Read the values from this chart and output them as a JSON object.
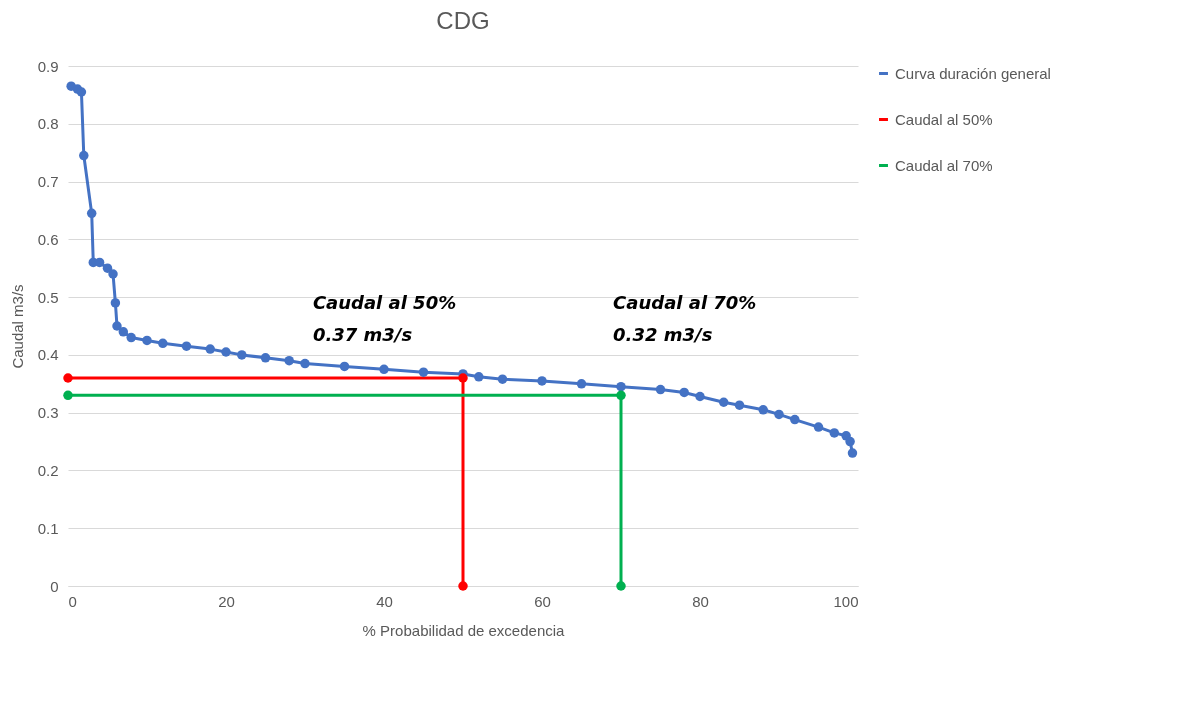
{
  "chart_data": {
    "type": "line",
    "title": "CDG",
    "xlabel": "% Probabilidad de excedencia",
    "ylabel": "Caudal m3/s",
    "xlim": [
      0,
      100
    ],
    "xticks": [
      0,
      20,
      40,
      60,
      80,
      100
    ],
    "ylim": [
      0,
      0.9
    ],
    "yticks": [
      0,
      0.1,
      0.2,
      0.3,
      0.4,
      0.5,
      0.6,
      0.7,
      0.8,
      0.9
    ],
    "grid": "y",
    "legend": "right",
    "marker": "circle",
    "annotations": [
      "Caudal al 50%\n0.37 m3/s",
      "Caudal al 70%\n0.32 m3/s"
    ],
    "series": [
      {
        "name": "Curva duración general",
        "color": "#4472c4",
        "x": [
          0.4,
          1.2,
          1.7,
          2,
          3,
          3.2,
          4,
          5,
          5.7,
          6,
          6.2,
          7,
          8,
          10,
          12,
          15,
          18,
          20,
          22,
          25,
          28,
          30,
          35,
          40,
          45,
          50,
          52,
          55,
          60,
          65,
          70,
          75,
          78,
          80,
          83,
          85,
          88,
          90,
          92,
          95,
          97,
          98.5,
          99,
          99.3
        ],
        "values": [
          0.865,
          0.86,
          0.855,
          0.745,
          0.645,
          0.56,
          0.56,
          0.55,
          0.54,
          0.49,
          0.45,
          0.44,
          0.43,
          0.425,
          0.42,
          0.415,
          0.41,
          0.405,
          0.4,
          0.395,
          0.39,
          0.385,
          0.38,
          0.375,
          0.37,
          0.367,
          0.362,
          0.358,
          0.355,
          0.35,
          0.345,
          0.34,
          0.335,
          0.328,
          0.318,
          0.313,
          0.305,
          0.297,
          0.288,
          0.275,
          0.265,
          0.26,
          0.25,
          0.23
        ]
      },
      {
        "name": "Caudal al 50%",
        "color": "#ff0000",
        "x": [
          0,
          50,
          50
        ],
        "values": [
          0.36,
          0.36,
          0
        ]
      },
      {
        "name": "Caudal al 70%",
        "color": "#00b050",
        "x": [
          0,
          70,
          70
        ],
        "values": [
          0.33,
          0.33,
          0
        ]
      }
    ]
  }
}
